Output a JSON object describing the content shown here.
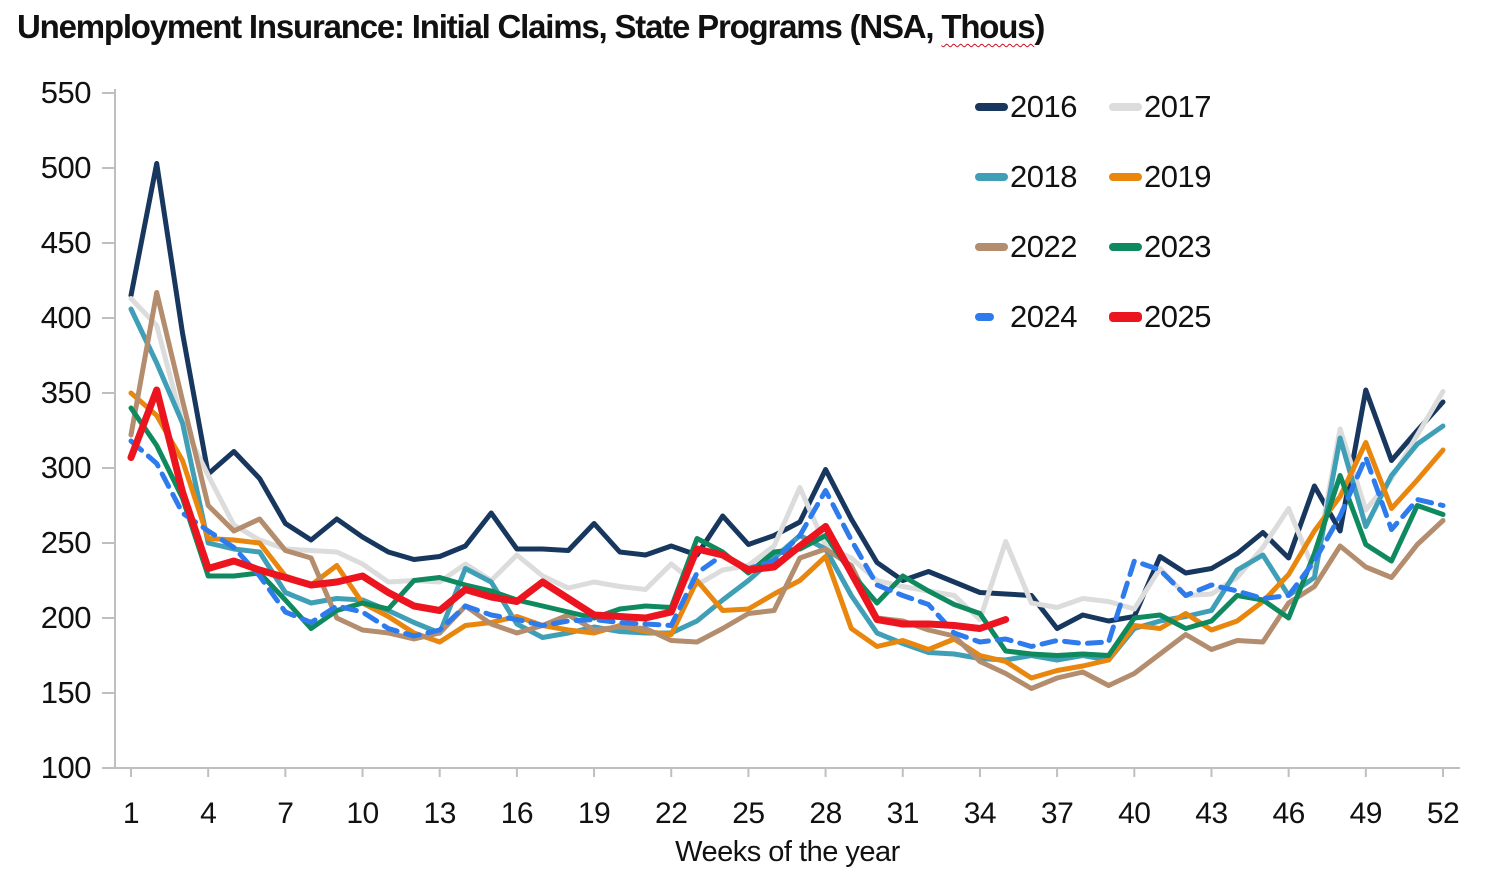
{
  "title": {
    "prefix": "Unemployment Insurance: Initial Claims, State Programs (NSA, ",
    "misspelled_word": "Thous",
    "suffix": ")"
  },
  "chart_data": {
    "type": "line",
    "title": "Unemployment Insurance: Initial Claims, State Programs (NSA, Thous)",
    "xlabel": "Weeks of the year",
    "ylabel": "",
    "xlim": [
      1,
      52
    ],
    "ylim": [
      100,
      550
    ],
    "grid": false,
    "legend_position": "top-right-two-columns",
    "x_ticks": [
      1,
      4,
      7,
      10,
      13,
      16,
      19,
      22,
      25,
      28,
      31,
      34,
      37,
      40,
      43,
      46,
      49,
      52
    ],
    "y_ticks": [
      100,
      150,
      200,
      250,
      300,
      350,
      400,
      450,
      500,
      550
    ],
    "legend_rows": [
      [
        "2016",
        "2017"
      ],
      [
        "2018",
        "2019"
      ],
      [
        "2022",
        "2023"
      ],
      [
        "2024",
        "2025"
      ]
    ],
    "axis_color": "#bfbfbf",
    "series": [
      {
        "name": "2016",
        "color": "#17375e",
        "style": "solid",
        "width": 5,
        "values": [
          415,
          503,
          390,
          296,
          311,
          293,
          263,
          252,
          266,
          254,
          244,
          239,
          241,
          248,
          270,
          246,
          246,
          245,
          263,
          244,
          242,
          248,
          242,
          268,
          249,
          255,
          264,
          299,
          266,
          237,
          225,
          231,
          224,
          217,
          216,
          215,
          193,
          202,
          198,
          201,
          241,
          230,
          233,
          243,
          257,
          240,
          288,
          258,
          352,
          305,
          325,
          344
        ]
      },
      {
        "name": "2017",
        "color": "#dcdcdc",
        "style": "solid",
        "width": 5,
        "values": [
          413,
          395,
          330,
          295,
          262,
          252,
          246,
          245,
          244,
          236,
          224,
          225,
          224,
          236,
          225,
          242,
          228,
          220,
          224,
          221,
          219,
          236,
          222,
          232,
          235,
          248,
          287,
          248,
          240,
          225,
          221,
          218,
          215,
          199,
          251,
          210,
          207,
          213,
          211,
          206,
          233,
          215,
          216,
          227,
          247,
          273,
          231,
          326,
          272,
          293,
          322,
          351
        ]
      },
      {
        "name": "2018",
        "color": "#3f9fb6",
        "style": "solid",
        "width": 5,
        "values": [
          406,
          370,
          330,
          250,
          246,
          244,
          217,
          210,
          213,
          212,
          205,
          197,
          190,
          233,
          224,
          196,
          187,
          190,
          194,
          191,
          190,
          190,
          198,
          212,
          225,
          240,
          255,
          246,
          215,
          190,
          183,
          177,
          176,
          173,
          172,
          175,
          172,
          175,
          172,
          193,
          198,
          201,
          205,
          232,
          242,
          215,
          227,
          320,
          261,
          295,
          316,
          328
        ]
      },
      {
        "name": "2019",
        "color": "#e8860e",
        "style": "solid",
        "width": 5,
        "values": [
          350,
          335,
          305,
          253,
          252,
          250,
          228,
          222,
          235,
          210,
          201,
          190,
          184,
          195,
          197,
          201,
          195,
          192,
          190,
          195,
          191,
          189,
          225,
          205,
          206,
          216,
          225,
          241,
          193,
          181,
          185,
          179,
          186,
          175,
          171,
          160,
          165,
          168,
          172,
          195,
          193,
          203,
          192,
          198,
          211,
          229,
          258,
          281,
          317,
          273,
          292,
          312
        ]
      },
      {
        "name": "2022",
        "color": "#b38d6d",
        "style": "solid",
        "width": 5,
        "values": [
          322,
          417,
          345,
          275,
          258,
          266,
          245,
          240,
          200,
          192,
          190,
          186,
          190,
          208,
          196,
          190,
          195,
          202,
          192,
          194,
          193,
          185,
          184,
          193,
          203,
          205,
          240,
          246,
          235,
          200,
          198,
          192,
          188,
          171,
          163,
          153,
          160,
          164,
          155,
          163,
          176,
          189,
          179,
          185,
          184,
          210,
          221,
          248,
          234,
          227,
          249,
          265
        ]
      },
      {
        "name": "2023",
        "color": "#0e8a5e",
        "style": "solid",
        "width": 5,
        "values": [
          340,
          315,
          280,
          228,
          228,
          230,
          212,
          193,
          205,
          210,
          206,
          225,
          227,
          222,
          218,
          212,
          208,
          204,
          200,
          206,
          208,
          207,
          253,
          244,
          230,
          244,
          246,
          255,
          230,
          210,
          228,
          218,
          209,
          203,
          178,
          176,
          175,
          176,
          175,
          200,
          202,
          193,
          198,
          215,
          212,
          200,
          243,
          295,
          249,
          238,
          275,
          269
        ]
      },
      {
        "name": "2024",
        "color": "#2e7bed",
        "style": "dashed",
        "width": 5,
        "values": [
          318,
          303,
          270,
          258,
          247,
          228,
          204,
          197,
          208,
          204,
          193,
          188,
          192,
          208,
          202,
          199,
          195,
          198,
          199,
          197,
          196,
          195,
          230,
          242,
          233,
          238,
          255,
          285,
          252,
          222,
          215,
          209,
          190,
          184,
          186,
          181,
          185,
          183,
          184,
          238,
          232,
          215,
          222,
          218,
          213,
          215,
          238,
          268,
          307,
          259,
          279,
          275
        ]
      },
      {
        "name": "2025",
        "color": "#eb141f",
        "style": "solid",
        "width": 7,
        "values": [
          307,
          352,
          284,
          233,
          238,
          232,
          227,
          222,
          224,
          228,
          217,
          208,
          205,
          219,
          214,
          211,
          224,
          213,
          202,
          201,
          200,
          204,
          246,
          242,
          232,
          234,
          248,
          261,
          230,
          199,
          196,
          196,
          195,
          193,
          199
        ]
      }
    ]
  }
}
